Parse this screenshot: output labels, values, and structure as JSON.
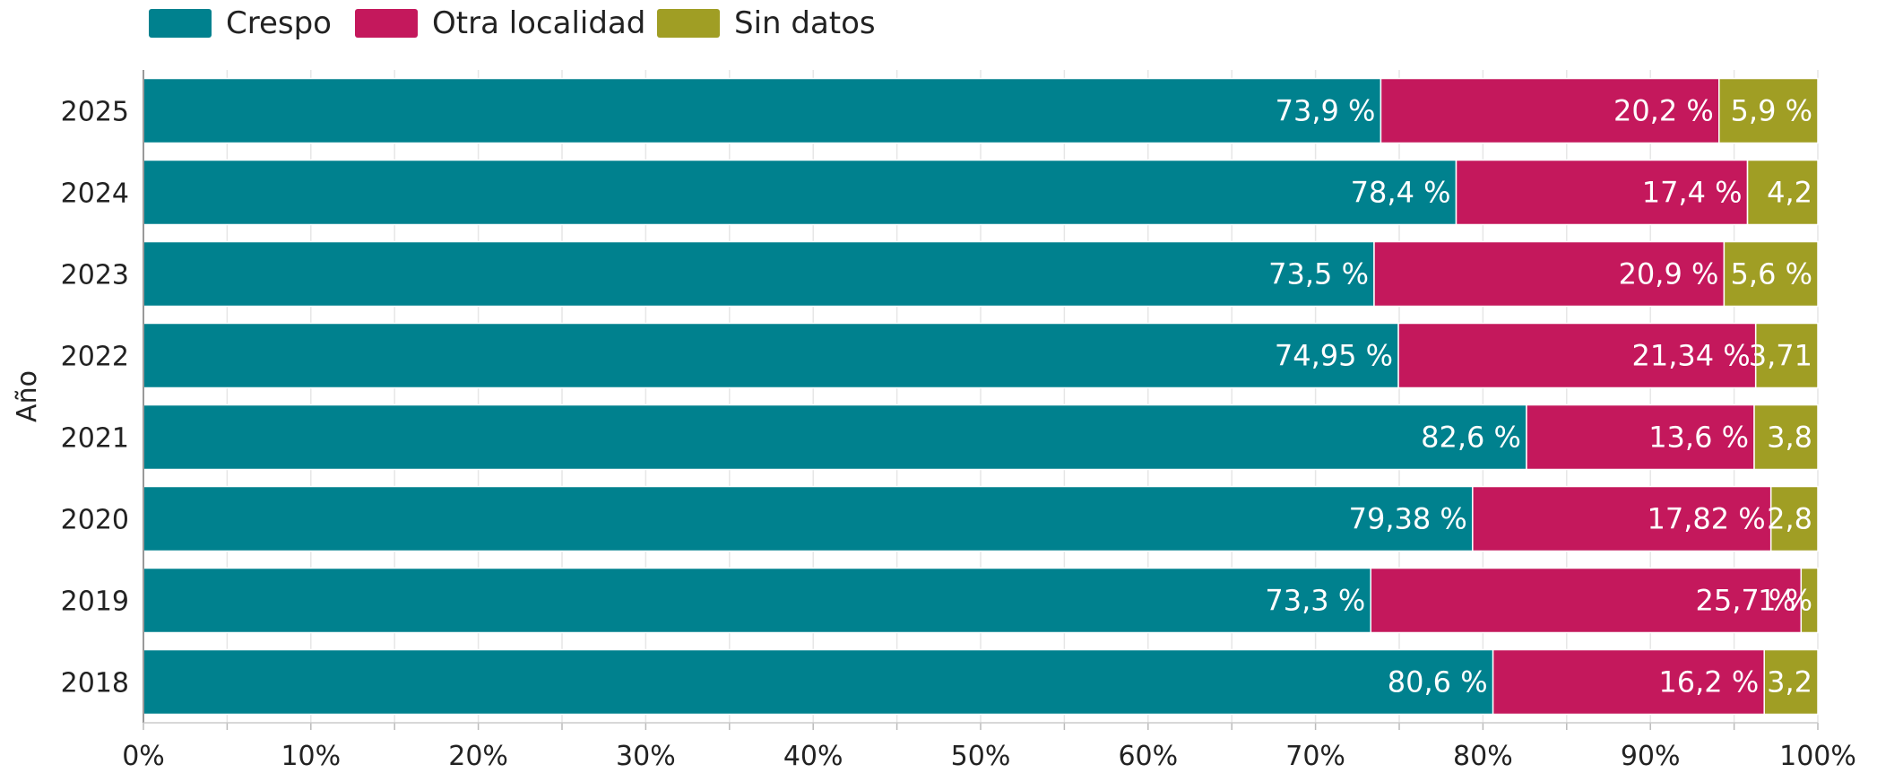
{
  "chart_data": {
    "type": "bar",
    "orientation": "horizontal",
    "stacked": true,
    "title": "",
    "xlabel": "",
    "ylabel": "Año",
    "xlim": [
      0,
      100
    ],
    "x_ticks": [
      "0%",
      "10%",
      "20%",
      "30%",
      "40%",
      "50%",
      "60%",
      "70%",
      "80%",
      "90%",
      "100%"
    ],
    "grid": true,
    "legend_position": "top-left",
    "categories": [
      "2025",
      "2024",
      "2023",
      "2022",
      "2021",
      "2020",
      "2019",
      "2018"
    ],
    "series": [
      {
        "name": "Crespo",
        "color": "#00818e",
        "values": [
          73.9,
          78.4,
          73.5,
          74.95,
          82.6,
          79.38,
          73.3,
          80.6
        ],
        "labels": [
          "73,9 %",
          "78,4 %",
          "73,5 %",
          "74,95 %",
          "82,6 %",
          "79,38 %",
          "73,3 %",
          "80,6 %"
        ],
        "label_color": "#ffffff"
      },
      {
        "name": "Otra localidad",
        "color": "#c4185c",
        "values": [
          20.2,
          17.4,
          20.9,
          21.34,
          13.6,
          17.82,
          25.7,
          16.2
        ],
        "labels": [
          "20,2 %",
          "17,4 %",
          "20,9 %",
          "21,34 %",
          "13,6 %",
          "17,82 %",
          "25,7 %",
          "16,2 %"
        ],
        "label_color": "#ffffff"
      },
      {
        "name": "Sin datos",
        "color": "#a09e24",
        "values": [
          5.9,
          4.2,
          5.6,
          3.71,
          3.8,
          2.8,
          1.0,
          3.2
        ],
        "labels": [
          "5,9 %",
          "4,2",
          "5,6 %",
          "3,71",
          "3,8",
          "2,8",
          "1 %",
          "3,2"
        ],
        "label_color": "#ffffff",
        "small_label_color": "#a09e24"
      }
    ]
  }
}
